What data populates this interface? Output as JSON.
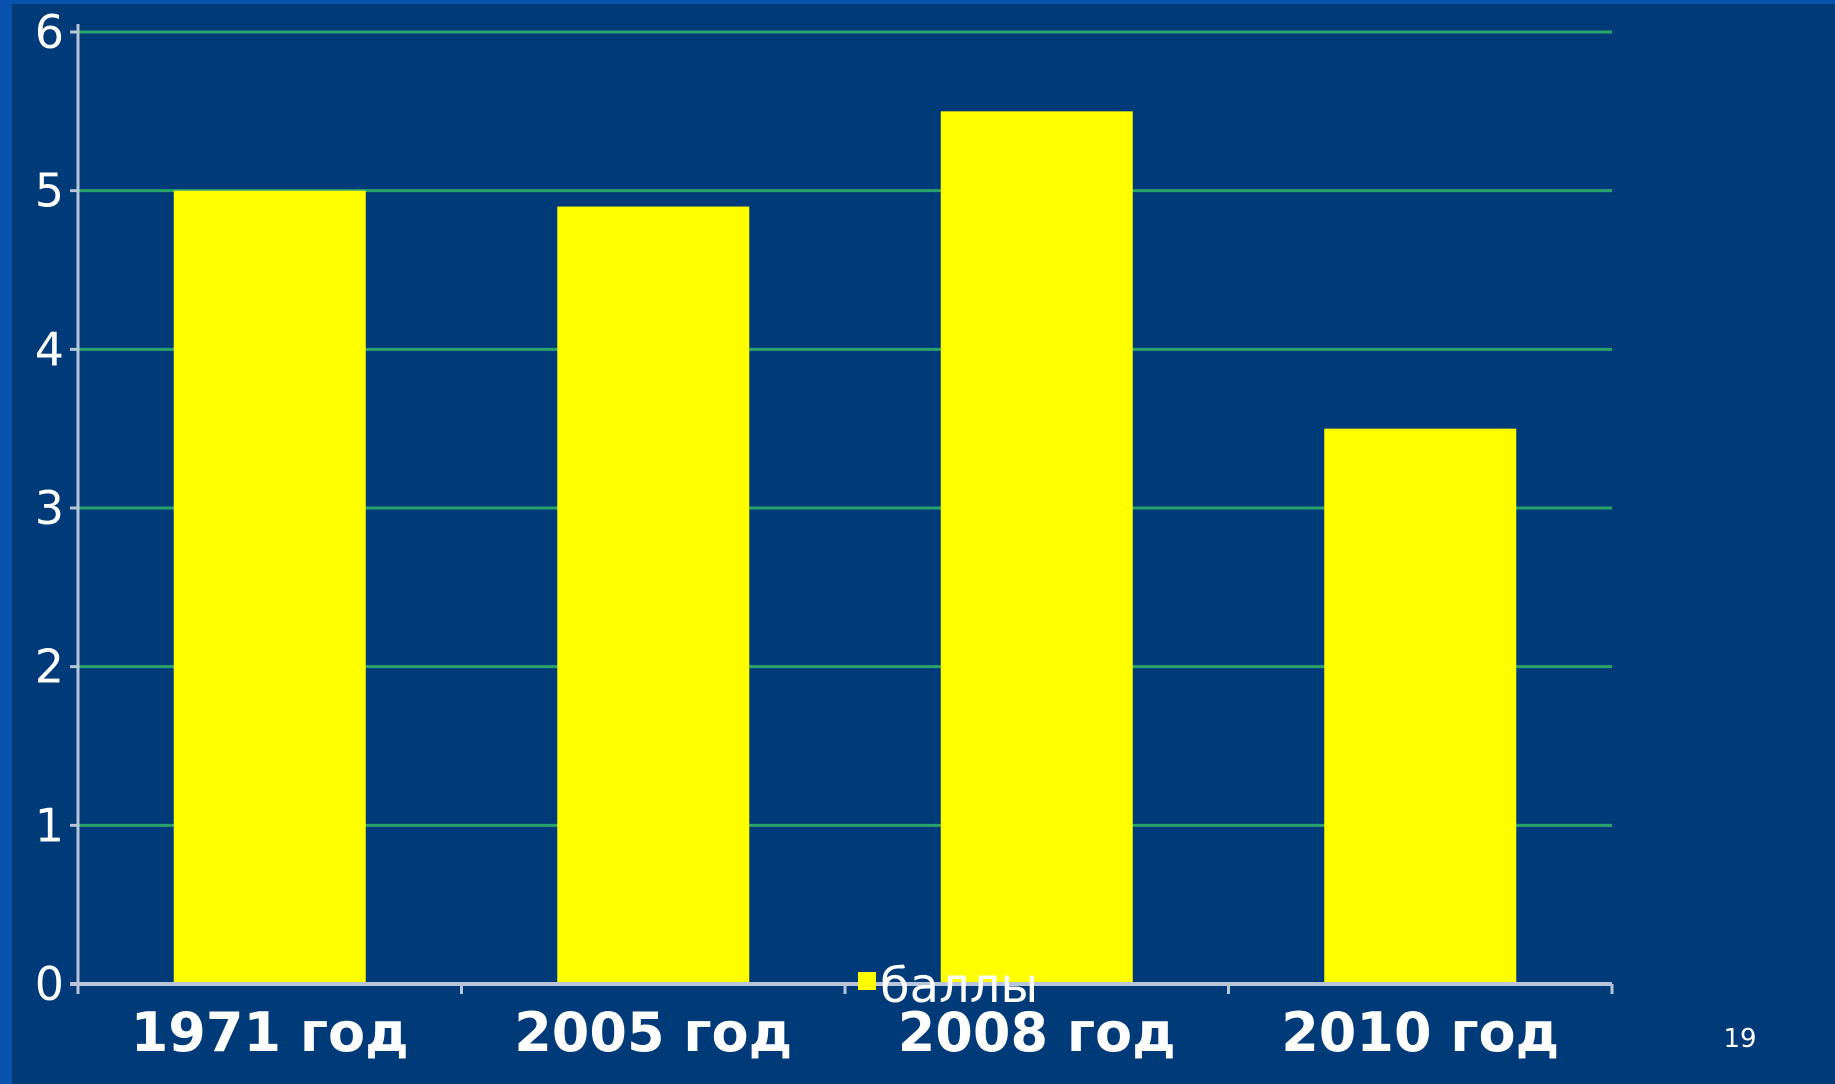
{
  "chart_data": {
    "type": "bar",
    "categories": [
      "1971 год",
      "2005 год",
      "2008 год",
      "2010 год"
    ],
    "series": [
      {
        "name": "баллы",
        "values": [
          5.0,
          4.9,
          5.5,
          3.5
        ]
      }
    ],
    "ylim": [
      0,
      6
    ],
    "yticks": [
      0,
      1,
      2,
      3,
      4,
      5,
      6
    ],
    "grid": true,
    "legend": "bottom",
    "colors": {
      "background": "#003a78",
      "bar": "#ffff00",
      "grid": "#2aa36a",
      "axis": "#b8c4d8",
      "text": "#ffffff"
    }
  },
  "slide": {
    "page_number": "19"
  }
}
